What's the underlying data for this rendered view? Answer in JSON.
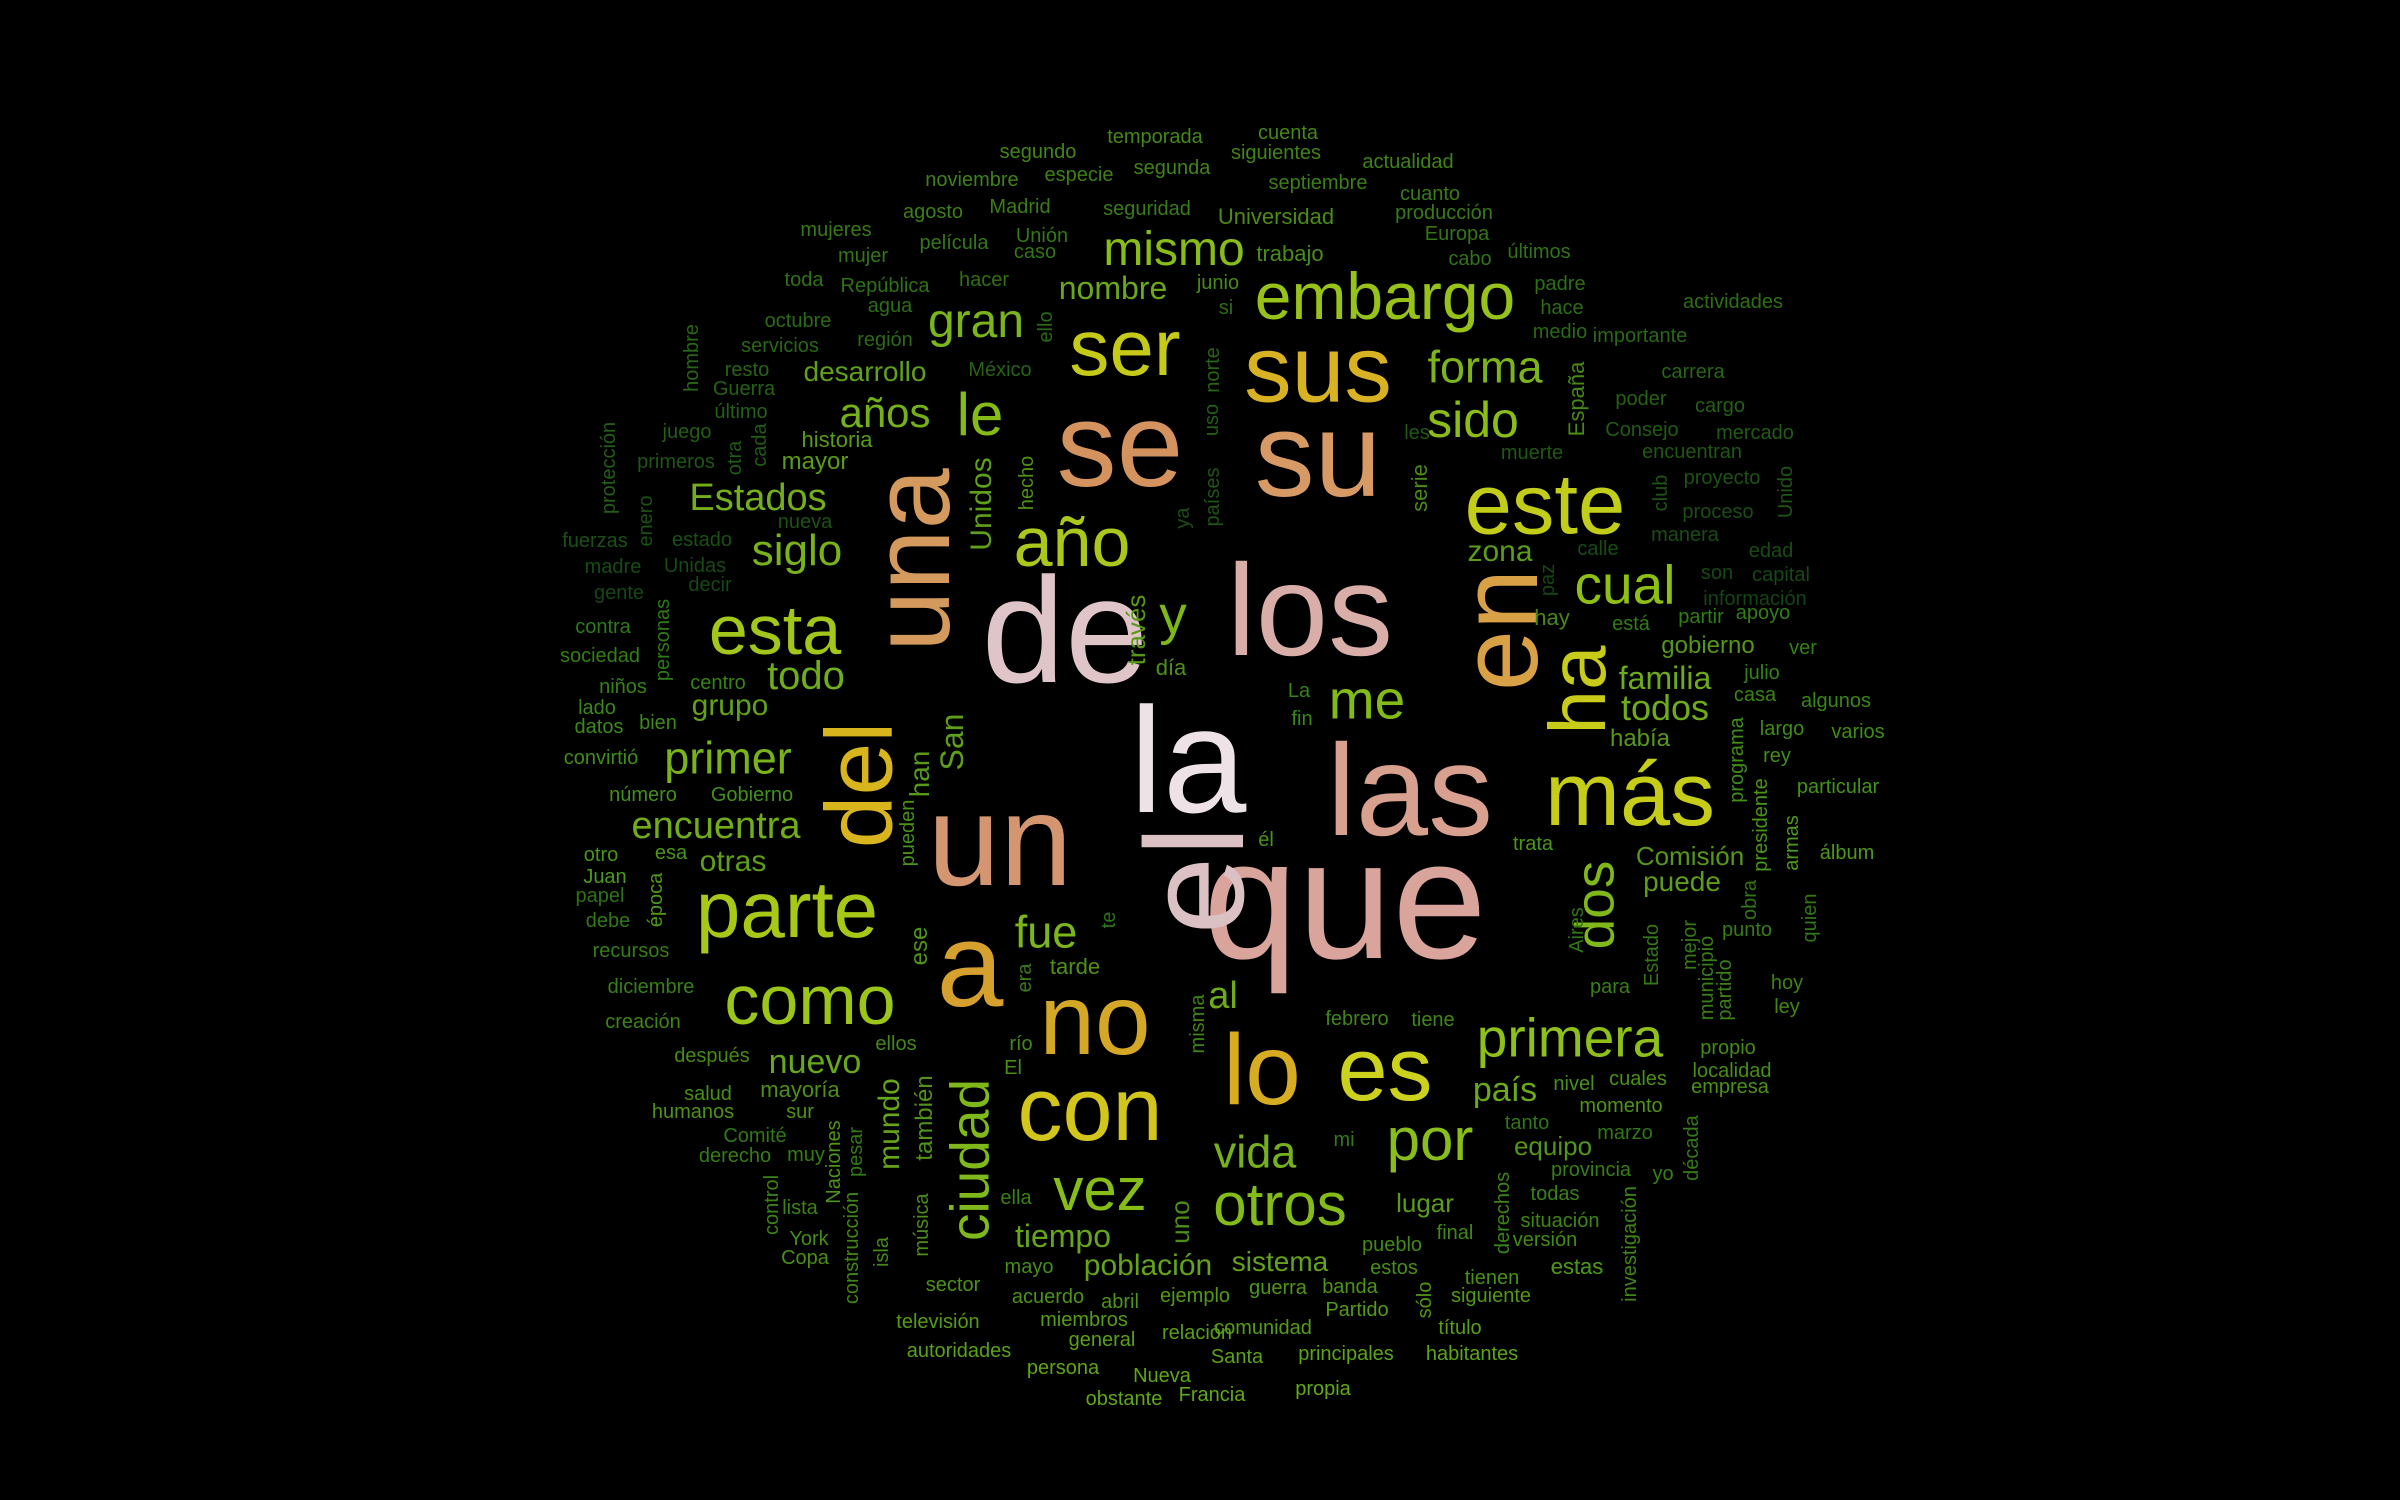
{
  "words": [
    {
      "text": "la",
      "color": "#ede3e6"
    },
    {
      "text": "de",
      "color": "#dfc4c8"
    },
    {
      "text": "que",
      "color": "#d9a49b"
    },
    {
      "text": "el",
      "color": "#dcc1c4"
    },
    {
      "text": "los",
      "color": "#d9aea8"
    },
    {
      "text": "las",
      "color": "#d7a08f"
    },
    {
      "text": "un",
      "color": "#d49670"
    },
    {
      "text": "una",
      "color": "#d49a5d"
    },
    {
      "text": "se",
      "color": "#d4935e"
    },
    {
      "text": "su",
      "color": "#d79a65"
    },
    {
      "text": "en",
      "color": "#d8a146"
    },
    {
      "text": "a",
      "color": "#d5a02d"
    },
    {
      "text": "no",
      "color": "#d5a727"
    },
    {
      "text": "lo",
      "color": "#d6ad22"
    },
    {
      "text": "sus",
      "color": "#d8b223"
    },
    {
      "text": "del",
      "color": "#d9b51d"
    },
    {
      "text": "con",
      "color": "#d2c51b"
    },
    {
      "text": "es",
      "color": "#ccd11e"
    },
    {
      "text": "ha",
      "color": "#c8cb1a"
    },
    {
      "text": "más",
      "color": "#c6cd19"
    },
    {
      "text": "este",
      "color": "#c2cd1a"
    },
    {
      "text": "ser",
      "color": "#c4ca17"
    },
    {
      "text": "parte",
      "color": "#a7c817"
    },
    {
      "text": "como",
      "color": "#9cc51a"
    },
    {
      "text": "esta",
      "color": "#a2c71a"
    },
    {
      "text": "año",
      "color": "#aac81c"
    },
    {
      "text": "embargo",
      "color": "#97c219"
    },
    {
      "text": "primera",
      "color": "#8fc019"
    },
    {
      "text": "por",
      "color": "#89bd1a"
    },
    {
      "text": "vez",
      "color": "#87bd17"
    },
    {
      "text": "otros",
      "color": "#84bb18"
    },
    {
      "text": "ciudad",
      "color": "#7fb81a"
    },
    {
      "text": "cual",
      "color": "#8ec014"
    },
    {
      "text": "sido",
      "color": "#8bbd17"
    },
    {
      "text": "mismo",
      "color": "#88bc17"
    },
    {
      "text": "le",
      "color": "#85bb16"
    },
    {
      "text": "dos",
      "color": "#80b71a"
    },
    {
      "text": "me",
      "color": "#82ba16"
    },
    {
      "text": "y",
      "color": "#7fb619"
    },
    {
      "text": "fue",
      "color": "#7db61a"
    },
    {
      "text": "forma",
      "color": "#7db41a"
    },
    {
      "text": "gran",
      "color": "#7ab51b"
    },
    {
      "text": "primer",
      "color": "#79b319"
    },
    {
      "text": "siglo",
      "color": "#79b21b"
    },
    {
      "text": "vida",
      "color": "#76b11b"
    },
    {
      "text": "años",
      "color": "#74b01a"
    },
    {
      "text": "Estados",
      "color": "#74ae1a"
    },
    {
      "text": "encuentra",
      "color": "#72ad19"
    },
    {
      "text": "todo",
      "color": "#70ad1a"
    },
    {
      "text": "todos",
      "color": "#70ab1c"
    },
    {
      "text": "familia",
      "color": "#6eab1b"
    },
    {
      "text": "al",
      "color": "#6ea91b"
    },
    {
      "text": "país",
      "color": "#6ba81b"
    },
    {
      "text": "nombre",
      "color": "#6aa71b"
    },
    {
      "text": "nuevo",
      "color": "#68a61a"
    },
    {
      "text": "mundo",
      "color": "#67a51b"
    },
    {
      "text": "tiempo",
      "color": "#66a41b"
    },
    {
      "text": "población",
      "color": "#64a31a"
    },
    {
      "text": "sistema",
      "color": "#63a21a"
    },
    {
      "text": "grupo",
      "color": "#62a11a"
    },
    {
      "text": "desarrollo",
      "color": "#61a01a"
    },
    {
      "text": "Unidos",
      "color": "#609f1a"
    },
    {
      "text": "San",
      "color": "#5f9e1a"
    },
    {
      "text": "otras",
      "color": "#5e9e19"
    },
    {
      "text": "puede",
      "color": "#5d9d19"
    },
    {
      "text": "zona",
      "color": "#5c9c19"
    },
    {
      "text": "lugar",
      "color": "#5b9b19"
    },
    {
      "text": "mayor",
      "color": "#5a9b19"
    },
    {
      "text": "historia",
      "color": "#599a19"
    },
    {
      "text": "han",
      "color": "#589919"
    },
    {
      "text": "través",
      "color": "#589819"
    },
    {
      "text": "había",
      "color": "#579819"
    },
    {
      "text": "Comisión",
      "color": "#569719"
    },
    {
      "text": "gobierno",
      "color": "#559619"
    },
    {
      "text": "equipo",
      "color": "#549519"
    },
    {
      "text": "estas",
      "color": "#539419"
    },
    {
      "text": "ese",
      "color": "#529419"
    },
    {
      "text": "también",
      "color": "#519319"
    },
    {
      "text": "tarde",
      "color": "#509218"
    },
    {
      "text": "día",
      "color": "#4f9118"
    },
    {
      "text": "hecho",
      "color": "#4e9018"
    },
    {
      "text": "mayoría",
      "color": "#4d8f18"
    },
    {
      "text": "uno",
      "color": "#4c8e18"
    },
    {
      "text": "música",
      "color": "#4b8d18"
    },
    {
      "text": "trabajo",
      "color": "#4a8c18"
    },
    {
      "text": "Universidad",
      "color": "#4a8c18"
    },
    {
      "text": "serie",
      "color": "#498b18"
    },
    {
      "text": "junio",
      "color": "#488a18"
    },
    {
      "text": "España",
      "color": "#478918"
    },
    {
      "text": "hay",
      "color": "#468818"
    },
    {
      "text": "temporada",
      "color": "#458718"
    },
    {
      "text": "cuenta",
      "color": "#448618"
    },
    {
      "text": "segundo",
      "color": "#438518"
    },
    {
      "text": "siguientes",
      "color": "#428418"
    },
    {
      "text": "segunda",
      "color": "#418318"
    },
    {
      "text": "actualidad",
      "color": "#408218"
    },
    {
      "text": "noviembre",
      "color": "#3f8117"
    },
    {
      "text": "especie",
      "color": "#3e8017"
    },
    {
      "text": "septiembre",
      "color": "#3d7f17"
    },
    {
      "text": "agosto",
      "color": "#3c7e17"
    },
    {
      "text": "Madrid",
      "color": "#3b7d17"
    },
    {
      "text": "seguridad",
      "color": "#3a7c17"
    },
    {
      "text": "cuanto",
      "color": "#397b17"
    },
    {
      "text": "producción",
      "color": "#387a17"
    },
    {
      "text": "mujeres",
      "color": "#377917"
    },
    {
      "text": "película",
      "color": "#367817"
    },
    {
      "text": "Unión",
      "color": "#357717"
    },
    {
      "text": "Europa",
      "color": "#347617"
    },
    {
      "text": "mujer",
      "color": "#337517"
    },
    {
      "text": "caso",
      "color": "#327417"
    },
    {
      "text": "últimos",
      "color": "#317317"
    },
    {
      "text": "cabo",
      "color": "#317317"
    },
    {
      "text": "toda",
      "color": "#307217"
    },
    {
      "text": "República",
      "color": "#2f7117"
    },
    {
      "text": "hacer",
      "color": "#2f7017"
    },
    {
      "text": "padre",
      "color": "#2e6f16"
    },
    {
      "text": "actividades",
      "color": "#2e6f16"
    },
    {
      "text": "agua",
      "color": "#2d6e16"
    },
    {
      "text": "si",
      "color": "#2d6d16"
    },
    {
      "text": "hace",
      "color": "#2c6c16"
    },
    {
      "text": "octubre",
      "color": "#2c6b16"
    },
    {
      "text": "región",
      "color": "#2b6a16"
    },
    {
      "text": "ello",
      "color": "#2b6a16"
    },
    {
      "text": "medio",
      "color": "#2a6916"
    },
    {
      "text": "importante",
      "color": "#2a6816"
    },
    {
      "text": "hombre",
      "color": "#296716"
    },
    {
      "text": "servicios",
      "color": "#296616"
    },
    {
      "text": "norte",
      "color": "#286516"
    },
    {
      "text": "carrera",
      "color": "#286516"
    },
    {
      "text": "resto",
      "color": "#276416"
    },
    {
      "text": "México",
      "color": "#276316"
    },
    {
      "text": "Guerra",
      "color": "#266216"
    },
    {
      "text": "poder",
      "color": "#266116"
    },
    {
      "text": "cargo",
      "color": "#256016"
    },
    {
      "text": "último",
      "color": "#256016"
    },
    {
      "text": "uso",
      "color": "#245f16"
    },
    {
      "text": "protección",
      "color": "#245e16"
    },
    {
      "text": "juego",
      "color": "#235d16"
    },
    {
      "text": "cada",
      "color": "#235c16"
    },
    {
      "text": "Consejo",
      "color": "#225b16"
    },
    {
      "text": "mercado",
      "color": "#225b15"
    },
    {
      "text": "otra",
      "color": "#215a15"
    },
    {
      "text": "les",
      "color": "#215915"
    },
    {
      "text": "muerte",
      "color": "#205815"
    },
    {
      "text": "encuentran",
      "color": "#205715"
    },
    {
      "text": "primeros",
      "color": "#1f5615"
    },
    {
      "text": "países",
      "color": "#1f5615"
    },
    {
      "text": "Unido",
      "color": "#1e5515"
    },
    {
      "text": "club",
      "color": "#1e5415"
    },
    {
      "text": "proyecto",
      "color": "#1d5315"
    },
    {
      "text": "nueva",
      "color": "#1d5215"
    },
    {
      "text": "fuerzas",
      "color": "#1c5115"
    },
    {
      "text": "enero",
      "color": "#1c5115"
    },
    {
      "text": "estado",
      "color": "#1b5015"
    },
    {
      "text": "ya",
      "color": "#1b4f15"
    },
    {
      "text": "proceso",
      "color": "#1a4e15"
    },
    {
      "text": "manera",
      "color": "#1a4d15"
    },
    {
      "text": "calle",
      "color": "#194c15"
    },
    {
      "text": "edad",
      "color": "#194c15"
    },
    {
      "text": "madre",
      "color": "#184b15"
    },
    {
      "text": "Unidas",
      "color": "#184a15"
    },
    {
      "text": "son",
      "color": "#174915"
    },
    {
      "text": "capital",
      "color": "#174815"
    },
    {
      "text": "gente",
      "color": "#164715"
    },
    {
      "text": "decir",
      "color": "#164715"
    },
    {
      "text": "paz",
      "color": "#154615"
    },
    {
      "text": "información",
      "color": "#154515"
    },
    {
      "text": "contra",
      "color": "#2d7a17"
    },
    {
      "text": "personas",
      "color": "#2e7b17"
    },
    {
      "text": "está",
      "color": "#2f7c17"
    },
    {
      "text": "partir",
      "color": "#307d17"
    },
    {
      "text": "apoyo",
      "color": "#317e17"
    },
    {
      "text": "sociedad",
      "color": "#327f17"
    },
    {
      "text": "ver",
      "color": "#338017"
    },
    {
      "text": "julio",
      "color": "#348117"
    },
    {
      "text": "niños",
      "color": "#358217"
    },
    {
      "text": "centro",
      "color": "#368317"
    },
    {
      "text": "La",
      "color": "#378417"
    },
    {
      "text": "casa",
      "color": "#388517"
    },
    {
      "text": "algunos",
      "color": "#398617"
    },
    {
      "text": "lado",
      "color": "#3a8717"
    },
    {
      "text": "fin",
      "color": "#3b8817"
    },
    {
      "text": "datos",
      "color": "#3c8917"
    },
    {
      "text": "bien",
      "color": "#3d8a17"
    },
    {
      "text": "largo",
      "color": "#3e8b17"
    },
    {
      "text": "varios",
      "color": "#3f8c17"
    },
    {
      "text": "convirtió",
      "color": "#408d18"
    },
    {
      "text": "rey",
      "color": "#418e18"
    },
    {
      "text": "programa",
      "color": "#428f18"
    },
    {
      "text": "número",
      "color": "#439018"
    },
    {
      "text": "Gobierno",
      "color": "#449118"
    },
    {
      "text": "particular",
      "color": "#459218"
    },
    {
      "text": "pueden",
      "color": "#469318"
    },
    {
      "text": "él",
      "color": "#479418"
    },
    {
      "text": "otro",
      "color": "#489518"
    },
    {
      "text": "esa",
      "color": "#499618"
    },
    {
      "text": "trata",
      "color": "#4a9718"
    },
    {
      "text": "presidente",
      "color": "#4b9818"
    },
    {
      "text": "álbum",
      "color": "#4c9918"
    },
    {
      "text": "Juan",
      "color": "#4d9a18"
    },
    {
      "text": "época",
      "color": "#4e9b18"
    },
    {
      "text": "armas",
      "color": "#4f9c18"
    },
    {
      "text": "papel",
      "color": "#2e7317"
    },
    {
      "text": "te",
      "color": "#2f7417"
    },
    {
      "text": "Aires",
      "color": "#307517"
    },
    {
      "text": "obra",
      "color": "#317617"
    },
    {
      "text": "quien",
      "color": "#327717"
    },
    {
      "text": "debe",
      "color": "#337817"
    },
    {
      "text": "Estado",
      "color": "#347917"
    },
    {
      "text": "mejor",
      "color": "#357a17"
    },
    {
      "text": "punto",
      "color": "#367b17"
    },
    {
      "text": "recursos",
      "color": "#377c17"
    },
    {
      "text": "era",
      "color": "#387d17"
    },
    {
      "text": "municipio",
      "color": "#397e17"
    },
    {
      "text": "diciembre",
      "color": "#3a7f17"
    },
    {
      "text": "para",
      "color": "#3b8017"
    },
    {
      "text": "partido",
      "color": "#3c8117"
    },
    {
      "text": "hoy",
      "color": "#3d8217"
    },
    {
      "text": "creación",
      "color": "#3e8317"
    },
    {
      "text": "misma",
      "color": "#3f8417"
    },
    {
      "text": "febrero",
      "color": "#408517"
    },
    {
      "text": "tiene",
      "color": "#418617"
    },
    {
      "text": "ley",
      "color": "#428717"
    },
    {
      "text": "ellos",
      "color": "#438817"
    },
    {
      "text": "río",
      "color": "#448917"
    },
    {
      "text": "propio",
      "color": "#458a17"
    },
    {
      "text": "después",
      "color": "#468b17"
    },
    {
      "text": "El",
      "color": "#478c17"
    },
    {
      "text": "localidad",
      "color": "#488d17"
    },
    {
      "text": "salud",
      "color": "#498e17"
    },
    {
      "text": "nivel",
      "color": "#4a8f17"
    },
    {
      "text": "cuales",
      "color": "#4b9017"
    },
    {
      "text": "empresa",
      "color": "#4c9117"
    },
    {
      "text": "sur",
      "color": "#4d9217"
    },
    {
      "text": "humanos",
      "color": "#4e9317"
    },
    {
      "text": "momento",
      "color": "#4f9417"
    },
    {
      "text": "Naciones",
      "color": "#509517"
    },
    {
      "text": "tanto",
      "color": "#2f7617"
    },
    {
      "text": "marzo",
      "color": "#307717"
    },
    {
      "text": "Comité",
      "color": "#317817"
    },
    {
      "text": "pesar",
      "color": "#327917"
    },
    {
      "text": "mi",
      "color": "#337a17"
    },
    {
      "text": "década",
      "color": "#347b17"
    },
    {
      "text": "muy",
      "color": "#357c17"
    },
    {
      "text": "derecho",
      "color": "#367d17"
    },
    {
      "text": "provincia",
      "color": "#377e17"
    },
    {
      "text": "yo",
      "color": "#387f17"
    },
    {
      "text": "ella",
      "color": "#398017"
    },
    {
      "text": "todas",
      "color": "#3a8117"
    },
    {
      "text": "lista",
      "color": "#3b8217"
    },
    {
      "text": "control",
      "color": "#3c8317"
    },
    {
      "text": "derechos",
      "color": "#3d8417"
    },
    {
      "text": "situación",
      "color": "#3e8517"
    },
    {
      "text": "investigación",
      "color": "#3f8617"
    },
    {
      "text": "construcción",
      "color": "#408717"
    },
    {
      "text": "final",
      "color": "#418817"
    },
    {
      "text": "pueblo",
      "color": "#428917"
    },
    {
      "text": "versión",
      "color": "#438a17"
    },
    {
      "text": "York",
      "color": "#448b17"
    },
    {
      "text": "isla",
      "color": "#458c17"
    },
    {
      "text": "mayo",
      "color": "#468d17"
    },
    {
      "text": "estos",
      "color": "#478e17"
    },
    {
      "text": "Copa",
      "color": "#488f17"
    },
    {
      "text": "tienen",
      "color": "#499017"
    },
    {
      "text": "estas",
      "color": "#4a9117"
    },
    {
      "text": "sector",
      "color": "#4b9217"
    },
    {
      "text": "acuerdo",
      "color": "#4c9317"
    },
    {
      "text": "banda",
      "color": "#4d9417"
    },
    {
      "text": "abril",
      "color": "#4e9517"
    },
    {
      "text": "guerra",
      "color": "#4f9617"
    },
    {
      "text": "sólo",
      "color": "#509717"
    },
    {
      "text": "siguiente",
      "color": "#519817"
    },
    {
      "text": "ejemplo",
      "color": "#529917"
    },
    {
      "text": "Partido",
      "color": "#539a17"
    },
    {
      "text": "televisión",
      "color": "#549b17"
    },
    {
      "text": "miembros",
      "color": "#559c17"
    },
    {
      "text": "comunidad",
      "color": "#569d17"
    },
    {
      "text": "título",
      "color": "#579e17"
    },
    {
      "text": "relación",
      "color": "#589f17"
    },
    {
      "text": "general",
      "color": "#59a017"
    },
    {
      "text": "autoridades",
      "color": "#5aa117"
    },
    {
      "text": "Santa",
      "color": "#5ba217"
    },
    {
      "text": "principales",
      "color": "#5ca317"
    },
    {
      "text": "habitantes",
      "color": "#5da417"
    },
    {
      "text": "persona",
      "color": "#5ea517"
    },
    {
      "text": "Nueva",
      "color": "#5fa617"
    },
    {
      "text": "obstante",
      "color": "#60a717"
    },
    {
      "text": "Francia",
      "color": "#61a817"
    },
    {
      "text": "propia",
      "color": "#62a917"
    }
  ]
}
